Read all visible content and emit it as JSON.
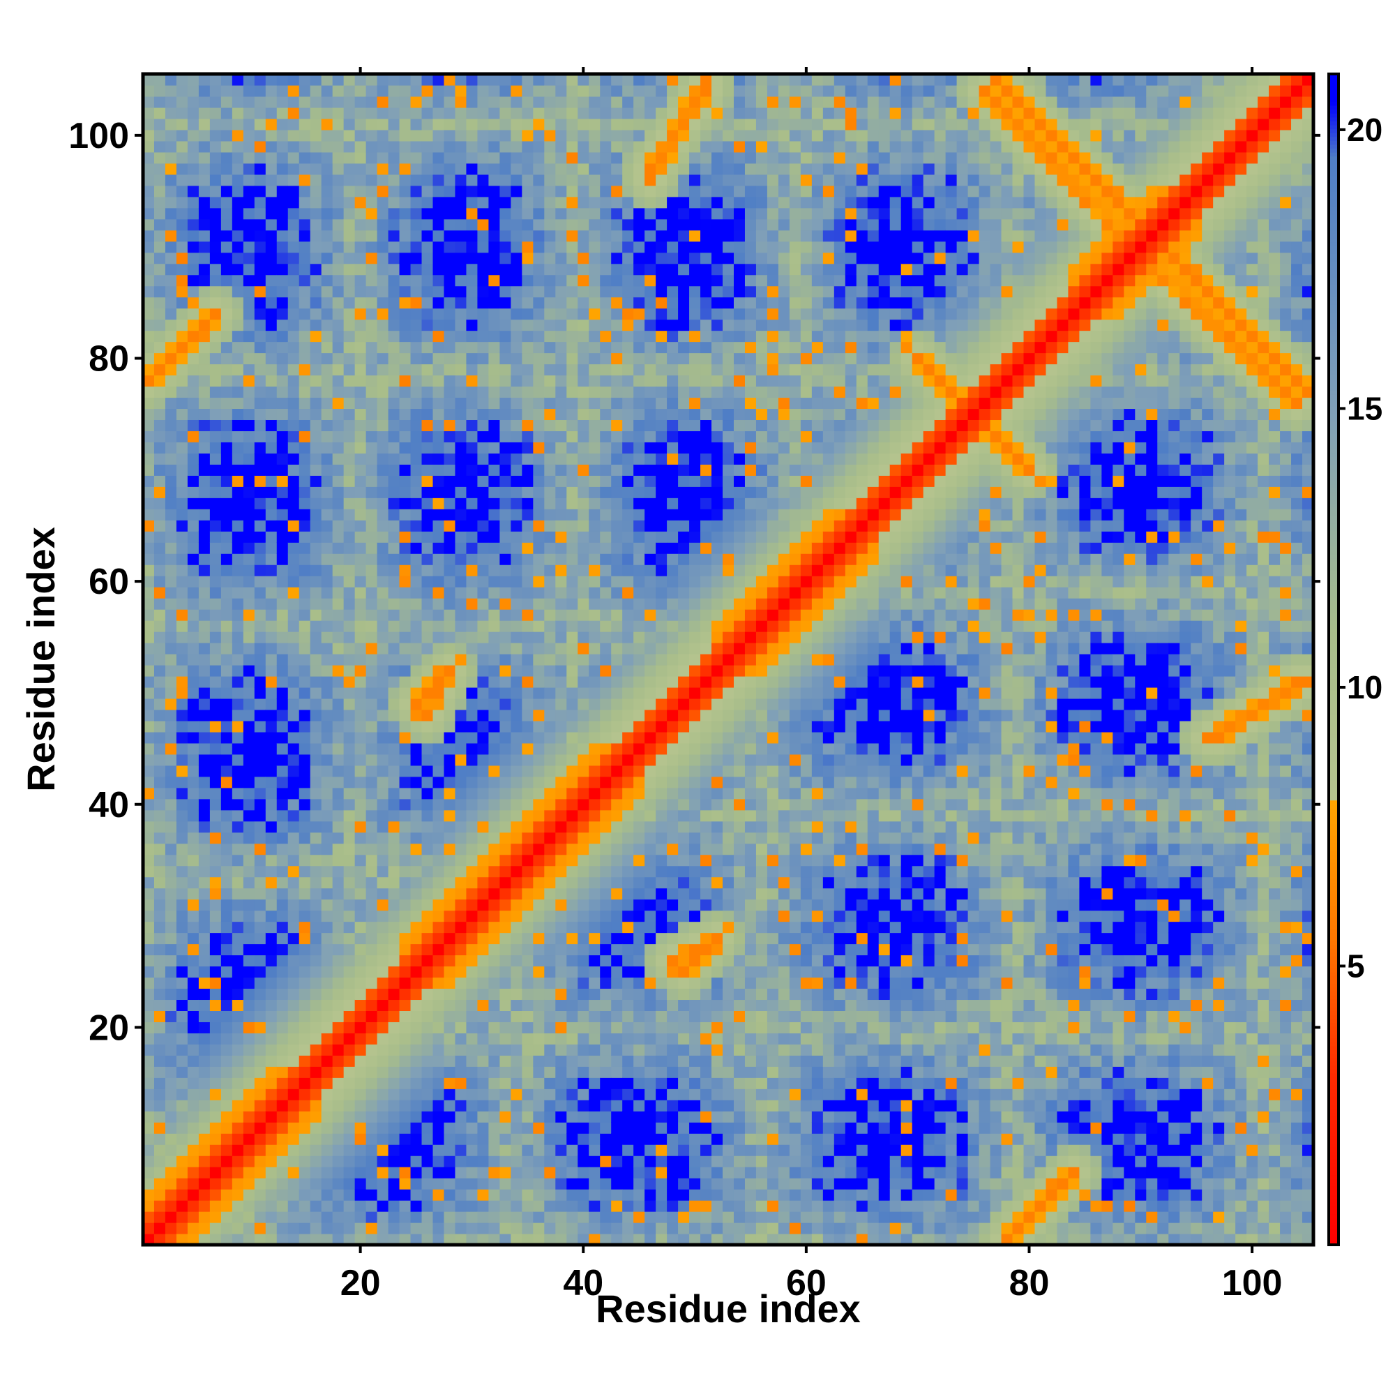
{
  "chart_data": {
    "type": "heatmap",
    "title": "",
    "xlabel": "Residue index",
    "ylabel": "Residue index",
    "n_residues": 105,
    "xlim": [
      0.5,
      105.5
    ],
    "ylim": [
      0.5,
      105.5
    ],
    "x_ticks": [
      20,
      40,
      60,
      80,
      100
    ],
    "y_ticks": [
      20,
      40,
      60,
      80,
      100
    ],
    "x_tick_labels": [
      "20",
      "40",
      "60",
      "80",
      "100"
    ],
    "y_tick_labels": [
      "20",
      "40",
      "60",
      "80",
      "100"
    ],
    "grid": false,
    "colorbar": {
      "position": "right",
      "min": 0,
      "max": 21,
      "ticks": [
        5,
        10,
        15,
        20
      ],
      "tick_labels": [
        "5",
        "10",
        "15",
        "20"
      ],
      "saturated_value": 21,
      "scale": [
        {
          "value": 0,
          "color": "#ff0000"
        },
        {
          "value": 3,
          "color": "#ff2a00"
        },
        {
          "value": 5.5,
          "color": "#ff7700"
        },
        {
          "value": 8,
          "color": "#ffa500"
        },
        {
          "value": 8.01,
          "color": "#b5c48e"
        },
        {
          "value": 11,
          "color": "#a8bd8a"
        },
        {
          "value": 15,
          "color": "#7f9fb8"
        },
        {
          "value": 19.5,
          "color": "#4f7ec6"
        },
        {
          "value": 20.5,
          "color": "#0000ff"
        },
        {
          "value": 21,
          "color": "#0000ff"
        }
      ]
    },
    "diagonal_value": 0,
    "description_of_structure": {
      "helical_diagonal_bands": [
        {
          "start": 1,
          "end": 16
        },
        {
          "start": 24,
          "end": 45
        },
        {
          "start": 52,
          "end": 66
        },
        {
          "start": 84,
          "end": 95
        }
      ],
      "contact_anti_diagonals": [
        {
          "x_from": 77,
          "y_from": 105,
          "x_to": 92,
          "y_to": 90
        },
        {
          "x_from": 89,
          "y_from": 90,
          "x_to": 104,
          "y_to": 76
        },
        {
          "x_from": 70,
          "y_from": 80,
          "x_to": 76,
          "y_to": 74
        },
        {
          "x_from": 46,
          "y_from": 96,
          "x_to": 51,
          "y_to": 105
        },
        {
          "x_from": 1,
          "y_from": 78,
          "x_to": 7,
          "y_to": 84
        },
        {
          "x_from": 78,
          "y_from": 1,
          "x_to": 84,
          "y_to": 7
        },
        {
          "x_from": 97,
          "y_from": 46,
          "x_to": 104,
          "y_to": 51
        },
        {
          "x_from": 26,
          "y_from": 48,
          "x_to": 28,
          "y_to": 52
        },
        {
          "x_from": 49,
          "y_from": 25,
          "x_to": 52,
          "y_to": 28
        }
      ]
    }
  }
}
